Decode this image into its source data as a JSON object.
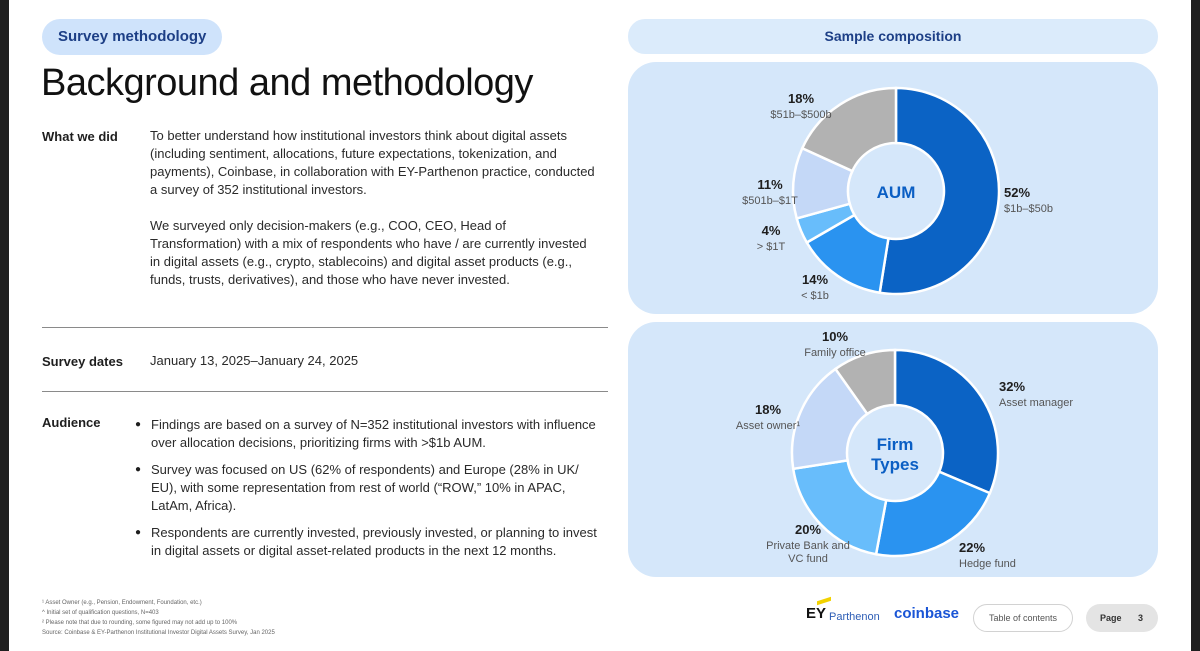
{
  "left": {
    "pill": "Survey methodology",
    "title": "Background and methodology",
    "what_label": "What we did",
    "what_p1": "To better understand how institutional investors think about digital assets (including sentiment, allocations, future expectations, tokenization, and payments), Coinbase, in collaboration with EY-Parthenon practice, conducted a survey of 352 institutional investors.",
    "what_p2": "We surveyed only decision-makers (e.g., COO, CEO, Head of Transformation) with a mix of respondents who have / are currently invested in digital assets (e.g., crypto, stablecoins) and digital asset products (e.g., funds, trusts, derivatives), and those who have never invested.",
    "dates_label": "Survey dates",
    "dates_value": "January 13, 2025–January 24, 2025",
    "audience_label": "Audience",
    "bullets": [
      "Findings are based on a survey of N=352 institutional investors with influence over allocation decisions, prioritizing firms with >$1b AUM.",
      "Survey was focused on US (62% of respondents) and Europe (28% in UK/ EU), with some representation from rest of world (“ROW,” 10% in APAC, LatAm, Africa).",
      "Respondents are currently invested, previously invested, or planning to invest in digital assets or digital asset-related products in the next 12 months."
    ],
    "footnotes": [
      "¹ Asset Owner (e.g., Pension, Endowment, Foundation, etc.)",
      "^ Initial set of qualification questions, N=403",
      "² Please note that due to rounding, some figured may not add up to 100%",
      "Source: Coinbase & EY-Parthenon Institutional Investor Digital Assets Survey, Jan 2025"
    ]
  },
  "right": {
    "header": "Sample composition"
  },
  "chart_data": [
    {
      "type": "pie",
      "center_label": [
        "AUM"
      ],
      "categories": [
        "$1b–$50b",
        "< $1b",
        "> $1T",
        "$501b–$1T",
        "$51b–$500b"
      ],
      "values": [
        52,
        14,
        4,
        11,
        18
      ],
      "value_labels": [
        "52%",
        "14%",
        "4%",
        "11%",
        "18%"
      ],
      "colors": [
        "#0b63c5",
        "#2a93f0",
        "#68bdfb",
        "#c4d8f7",
        "#b2b2b2"
      ]
    },
    {
      "type": "pie",
      "center_label": [
        "Firm",
        "Types"
      ],
      "categories": [
        "Asset manager",
        "Hedge fund",
        "Private Bank and VC fund",
        "Asset owner¹",
        "Family office"
      ],
      "values": [
        32,
        22,
        20,
        18,
        10
      ],
      "value_labels": [
        "32%",
        "22%",
        "20%",
        "18%",
        "10%"
      ],
      "colors": [
        "#0b63c5",
        "#2a93f0",
        "#68bdfb",
        "#c4d8f7",
        "#b2b2b2"
      ]
    }
  ],
  "footer": {
    "ey": "EY",
    "ey_sub": "Parthenon",
    "coinbase": "coinbase",
    "toc": "Table of contents",
    "page_label": "Page",
    "page_num": "3"
  }
}
